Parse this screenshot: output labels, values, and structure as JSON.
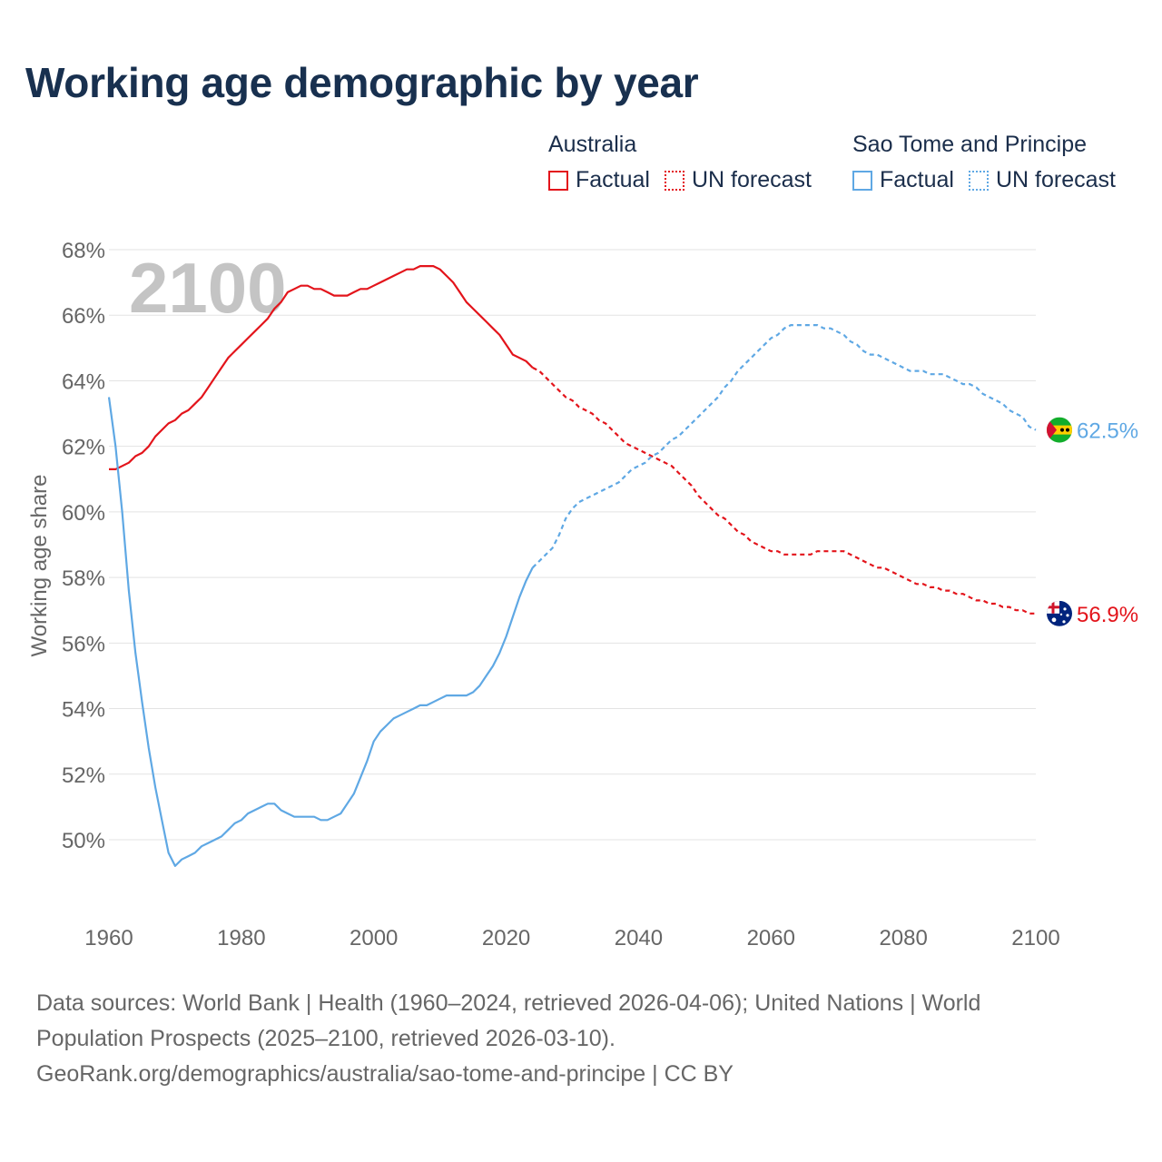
{
  "title": "Working age demographic by year",
  "legend": {
    "groups": [
      {
        "country": "Australia",
        "color": "#e3141b",
        "factual_label": "Factual",
        "forecast_label": "UN forecast"
      },
      {
        "country": "Sao Tome and Principe",
        "color": "#5fa8e4",
        "factual_label": "Factual",
        "forecast_label": "UN forecast"
      }
    ]
  },
  "chart_data": {
    "type": "line",
    "title": "Working age demographic by year",
    "ylabel": "Working age share",
    "xlabel": "",
    "xlim": [
      1960,
      2100
    ],
    "ylim": [
      48,
      68
    ],
    "x_ticks": [
      "1960",
      "1980",
      "2000",
      "2020",
      "2040",
      "2060",
      "2080",
      "2100"
    ],
    "y_ticks": [
      "50%",
      "52%",
      "54%",
      "56%",
      "58%",
      "60%",
      "62%",
      "64%",
      "66%",
      "68%"
    ],
    "year_watermark": "2100",
    "factual_range": [
      1960,
      2024
    ],
    "forecast_range": [
      2025,
      2100
    ],
    "series": [
      {
        "name": "Australia",
        "color": "#e3141b",
        "end_label": "56.9%",
        "flag_icon": "australia-flag-icon",
        "points": [
          [
            1960,
            61.3
          ],
          [
            1961,
            61.3
          ],
          [
            1962,
            61.4
          ],
          [
            1963,
            61.5
          ],
          [
            1964,
            61.7
          ],
          [
            1965,
            61.8
          ],
          [
            1966,
            62.0
          ],
          [
            1967,
            62.3
          ],
          [
            1968,
            62.5
          ],
          [
            1969,
            62.7
          ],
          [
            1970,
            62.8
          ],
          [
            1971,
            63.0
          ],
          [
            1972,
            63.1
          ],
          [
            1973,
            63.3
          ],
          [
            1974,
            63.5
          ],
          [
            1975,
            63.8
          ],
          [
            1976,
            64.1
          ],
          [
            1977,
            64.4
          ],
          [
            1978,
            64.7
          ],
          [
            1979,
            64.9
          ],
          [
            1980,
            65.1
          ],
          [
            1981,
            65.3
          ],
          [
            1982,
            65.5
          ],
          [
            1983,
            65.7
          ],
          [
            1984,
            65.9
          ],
          [
            1985,
            66.2
          ],
          [
            1986,
            66.4
          ],
          [
            1987,
            66.7
          ],
          [
            1988,
            66.8
          ],
          [
            1989,
            66.9
          ],
          [
            1990,
            66.9
          ],
          [
            1991,
            66.8
          ],
          [
            1992,
            66.8
          ],
          [
            1993,
            66.7
          ],
          [
            1994,
            66.6
          ],
          [
            1995,
            66.6
          ],
          [
            1996,
            66.6
          ],
          [
            1997,
            66.7
          ],
          [
            1998,
            66.8
          ],
          [
            1999,
            66.8
          ],
          [
            2000,
            66.9
          ],
          [
            2001,
            67.0
          ],
          [
            2002,
            67.1
          ],
          [
            2003,
            67.2
          ],
          [
            2004,
            67.3
          ],
          [
            2005,
            67.4
          ],
          [
            2006,
            67.4
          ],
          [
            2007,
            67.5
          ],
          [
            2008,
            67.5
          ],
          [
            2009,
            67.5
          ],
          [
            2010,
            67.4
          ],
          [
            2011,
            67.2
          ],
          [
            2012,
            67.0
          ],
          [
            2013,
            66.7
          ],
          [
            2014,
            66.4
          ],
          [
            2015,
            66.2
          ],
          [
            2016,
            66.0
          ],
          [
            2017,
            65.8
          ],
          [
            2018,
            65.6
          ],
          [
            2019,
            65.4
          ],
          [
            2020,
            65.1
          ],
          [
            2021,
            64.8
          ],
          [
            2022,
            64.7
          ],
          [
            2023,
            64.6
          ],
          [
            2024,
            64.4
          ],
          [
            2025,
            64.3
          ],
          [
            2026,
            64.1
          ],
          [
            2027,
            63.9
          ],
          [
            2028,
            63.7
          ],
          [
            2029,
            63.5
          ],
          [
            2030,
            63.4
          ],
          [
            2031,
            63.2
          ],
          [
            2032,
            63.1
          ],
          [
            2033,
            63.0
          ],
          [
            2034,
            62.8
          ],
          [
            2035,
            62.7
          ],
          [
            2036,
            62.5
          ],
          [
            2037,
            62.3
          ],
          [
            2038,
            62.1
          ],
          [
            2039,
            62.0
          ],
          [
            2040,
            61.9
          ],
          [
            2041,
            61.8
          ],
          [
            2042,
            61.7
          ],
          [
            2043,
            61.6
          ],
          [
            2044,
            61.5
          ],
          [
            2045,
            61.4
          ],
          [
            2046,
            61.2
          ],
          [
            2047,
            61.0
          ],
          [
            2048,
            60.8
          ],
          [
            2049,
            60.5
          ],
          [
            2050,
            60.3
          ],
          [
            2051,
            60.1
          ],
          [
            2052,
            59.9
          ],
          [
            2053,
            59.8
          ],
          [
            2054,
            59.6
          ],
          [
            2055,
            59.4
          ],
          [
            2056,
            59.3
          ],
          [
            2057,
            59.1
          ],
          [
            2058,
            59.0
          ],
          [
            2059,
            58.9
          ],
          [
            2060,
            58.8
          ],
          [
            2061,
            58.8
          ],
          [
            2062,
            58.7
          ],
          [
            2063,
            58.7
          ],
          [
            2064,
            58.7
          ],
          [
            2065,
            58.7
          ],
          [
            2066,
            58.7
          ],
          [
            2067,
            58.8
          ],
          [
            2068,
            58.8
          ],
          [
            2069,
            58.8
          ],
          [
            2070,
            58.8
          ],
          [
            2071,
            58.8
          ],
          [
            2072,
            58.7
          ],
          [
            2073,
            58.6
          ],
          [
            2074,
            58.5
          ],
          [
            2075,
            58.4
          ],
          [
            2076,
            58.3
          ],
          [
            2077,
            58.3
          ],
          [
            2078,
            58.2
          ],
          [
            2079,
            58.1
          ],
          [
            2080,
            58.0
          ],
          [
            2081,
            57.9
          ],
          [
            2082,
            57.8
          ],
          [
            2083,
            57.8
          ],
          [
            2084,
            57.7
          ],
          [
            2085,
            57.7
          ],
          [
            2086,
            57.6
          ],
          [
            2087,
            57.6
          ],
          [
            2088,
            57.5
          ],
          [
            2089,
            57.5
          ],
          [
            2090,
            57.4
          ],
          [
            2091,
            57.3
          ],
          [
            2092,
            57.3
          ],
          [
            2093,
            57.2
          ],
          [
            2094,
            57.2
          ],
          [
            2095,
            57.1
          ],
          [
            2096,
            57.1
          ],
          [
            2097,
            57.0
          ],
          [
            2098,
            57.0
          ],
          [
            2099,
            56.9
          ],
          [
            2100,
            56.9
          ]
        ]
      },
      {
        "name": "Sao Tome and Principe",
        "color": "#5fa8e4",
        "end_label": "62.5%",
        "flag_icon": "sao-tome-and-principe-flag-icon",
        "points": [
          [
            1960,
            63.5
          ],
          [
            1961,
            62.0
          ],
          [
            1962,
            60.0
          ],
          [
            1963,
            57.6
          ],
          [
            1964,
            55.7
          ],
          [
            1965,
            54.2
          ],
          [
            1966,
            52.8
          ],
          [
            1967,
            51.6
          ],
          [
            1968,
            50.6
          ],
          [
            1969,
            49.6
          ],
          [
            1970,
            49.2
          ],
          [
            1971,
            49.4
          ],
          [
            1972,
            49.5
          ],
          [
            1973,
            49.6
          ],
          [
            1974,
            49.8
          ],
          [
            1975,
            49.9
          ],
          [
            1976,
            50.0
          ],
          [
            1977,
            50.1
          ],
          [
            1978,
            50.3
          ],
          [
            1979,
            50.5
          ],
          [
            1980,
            50.6
          ],
          [
            1981,
            50.8
          ],
          [
            1982,
            50.9
          ],
          [
            1983,
            51.0
          ],
          [
            1984,
            51.1
          ],
          [
            1985,
            51.1
          ],
          [
            1986,
            50.9
          ],
          [
            1987,
            50.8
          ],
          [
            1988,
            50.7
          ],
          [
            1989,
            50.7
          ],
          [
            1990,
            50.7
          ],
          [
            1991,
            50.7
          ],
          [
            1992,
            50.6
          ],
          [
            1993,
            50.6
          ],
          [
            1994,
            50.7
          ],
          [
            1995,
            50.8
          ],
          [
            1996,
            51.1
          ],
          [
            1997,
            51.4
          ],
          [
            1998,
            51.9
          ],
          [
            1999,
            52.4
          ],
          [
            2000,
            53.0
          ],
          [
            2001,
            53.3
          ],
          [
            2002,
            53.5
          ],
          [
            2003,
            53.7
          ],
          [
            2004,
            53.8
          ],
          [
            2005,
            53.9
          ],
          [
            2006,
            54.0
          ],
          [
            2007,
            54.1
          ],
          [
            2008,
            54.1
          ],
          [
            2009,
            54.2
          ],
          [
            2010,
            54.3
          ],
          [
            2011,
            54.4
          ],
          [
            2012,
            54.4
          ],
          [
            2013,
            54.4
          ],
          [
            2014,
            54.4
          ],
          [
            2015,
            54.5
          ],
          [
            2016,
            54.7
          ],
          [
            2017,
            55.0
          ],
          [
            2018,
            55.3
          ],
          [
            2019,
            55.7
          ],
          [
            2020,
            56.2
          ],
          [
            2021,
            56.8
          ],
          [
            2022,
            57.4
          ],
          [
            2023,
            57.9
          ],
          [
            2024,
            58.3
          ],
          [
            2025,
            58.5
          ],
          [
            2026,
            58.7
          ],
          [
            2027,
            58.9
          ],
          [
            2028,
            59.3
          ],
          [
            2029,
            59.8
          ],
          [
            2030,
            60.1
          ],
          [
            2031,
            60.3
          ],
          [
            2032,
            60.4
          ],
          [
            2033,
            60.5
          ],
          [
            2034,
            60.6
          ],
          [
            2035,
            60.7
          ],
          [
            2036,
            60.8
          ],
          [
            2037,
            60.9
          ],
          [
            2038,
            61.1
          ],
          [
            2039,
            61.3
          ],
          [
            2040,
            61.4
          ],
          [
            2041,
            61.5
          ],
          [
            2042,
            61.7
          ],
          [
            2043,
            61.8
          ],
          [
            2044,
            62.0
          ],
          [
            2045,
            62.2
          ],
          [
            2046,
            62.3
          ],
          [
            2047,
            62.5
          ],
          [
            2048,
            62.7
          ],
          [
            2049,
            62.9
          ],
          [
            2050,
            63.1
          ],
          [
            2051,
            63.3
          ],
          [
            2052,
            63.5
          ],
          [
            2053,
            63.8
          ],
          [
            2054,
            64.0
          ],
          [
            2055,
            64.3
          ],
          [
            2056,
            64.5
          ],
          [
            2057,
            64.7
          ],
          [
            2058,
            64.9
          ],
          [
            2059,
            65.1
          ],
          [
            2060,
            65.3
          ],
          [
            2061,
            65.4
          ],
          [
            2062,
            65.6
          ],
          [
            2063,
            65.7
          ],
          [
            2064,
            65.7
          ],
          [
            2065,
            65.7
          ],
          [
            2066,
            65.7
          ],
          [
            2067,
            65.7
          ],
          [
            2068,
            65.6
          ],
          [
            2069,
            65.6
          ],
          [
            2070,
            65.5
          ],
          [
            2071,
            65.4
          ],
          [
            2072,
            65.2
          ],
          [
            2073,
            65.1
          ],
          [
            2074,
            64.9
          ],
          [
            2075,
            64.8
          ],
          [
            2076,
            64.8
          ],
          [
            2077,
            64.7
          ],
          [
            2078,
            64.6
          ],
          [
            2079,
            64.5
          ],
          [
            2080,
            64.4
          ],
          [
            2081,
            64.3
          ],
          [
            2082,
            64.3
          ],
          [
            2083,
            64.3
          ],
          [
            2084,
            64.2
          ],
          [
            2085,
            64.2
          ],
          [
            2086,
            64.2
          ],
          [
            2087,
            64.1
          ],
          [
            2088,
            64.0
          ],
          [
            2089,
            63.9
          ],
          [
            2090,
            63.9
          ],
          [
            2091,
            63.8
          ],
          [
            2092,
            63.6
          ],
          [
            2093,
            63.5
          ],
          [
            2094,
            63.4
          ],
          [
            2095,
            63.3
          ],
          [
            2096,
            63.1
          ],
          [
            2097,
            63.0
          ],
          [
            2098,
            62.9
          ],
          [
            2099,
            62.6
          ],
          [
            2100,
            62.5
          ]
        ]
      }
    ]
  },
  "footer": {
    "line1": "Data sources: World Bank | Health (1960–2024, retrieved 2026-04-06); United Nations | World",
    "line2": "Population Prospects (2025–2100, retrieved 2026-03-10).",
    "line3": "GeoRank.org/demographics/australia/sao-tome-and-principe | CC BY"
  }
}
